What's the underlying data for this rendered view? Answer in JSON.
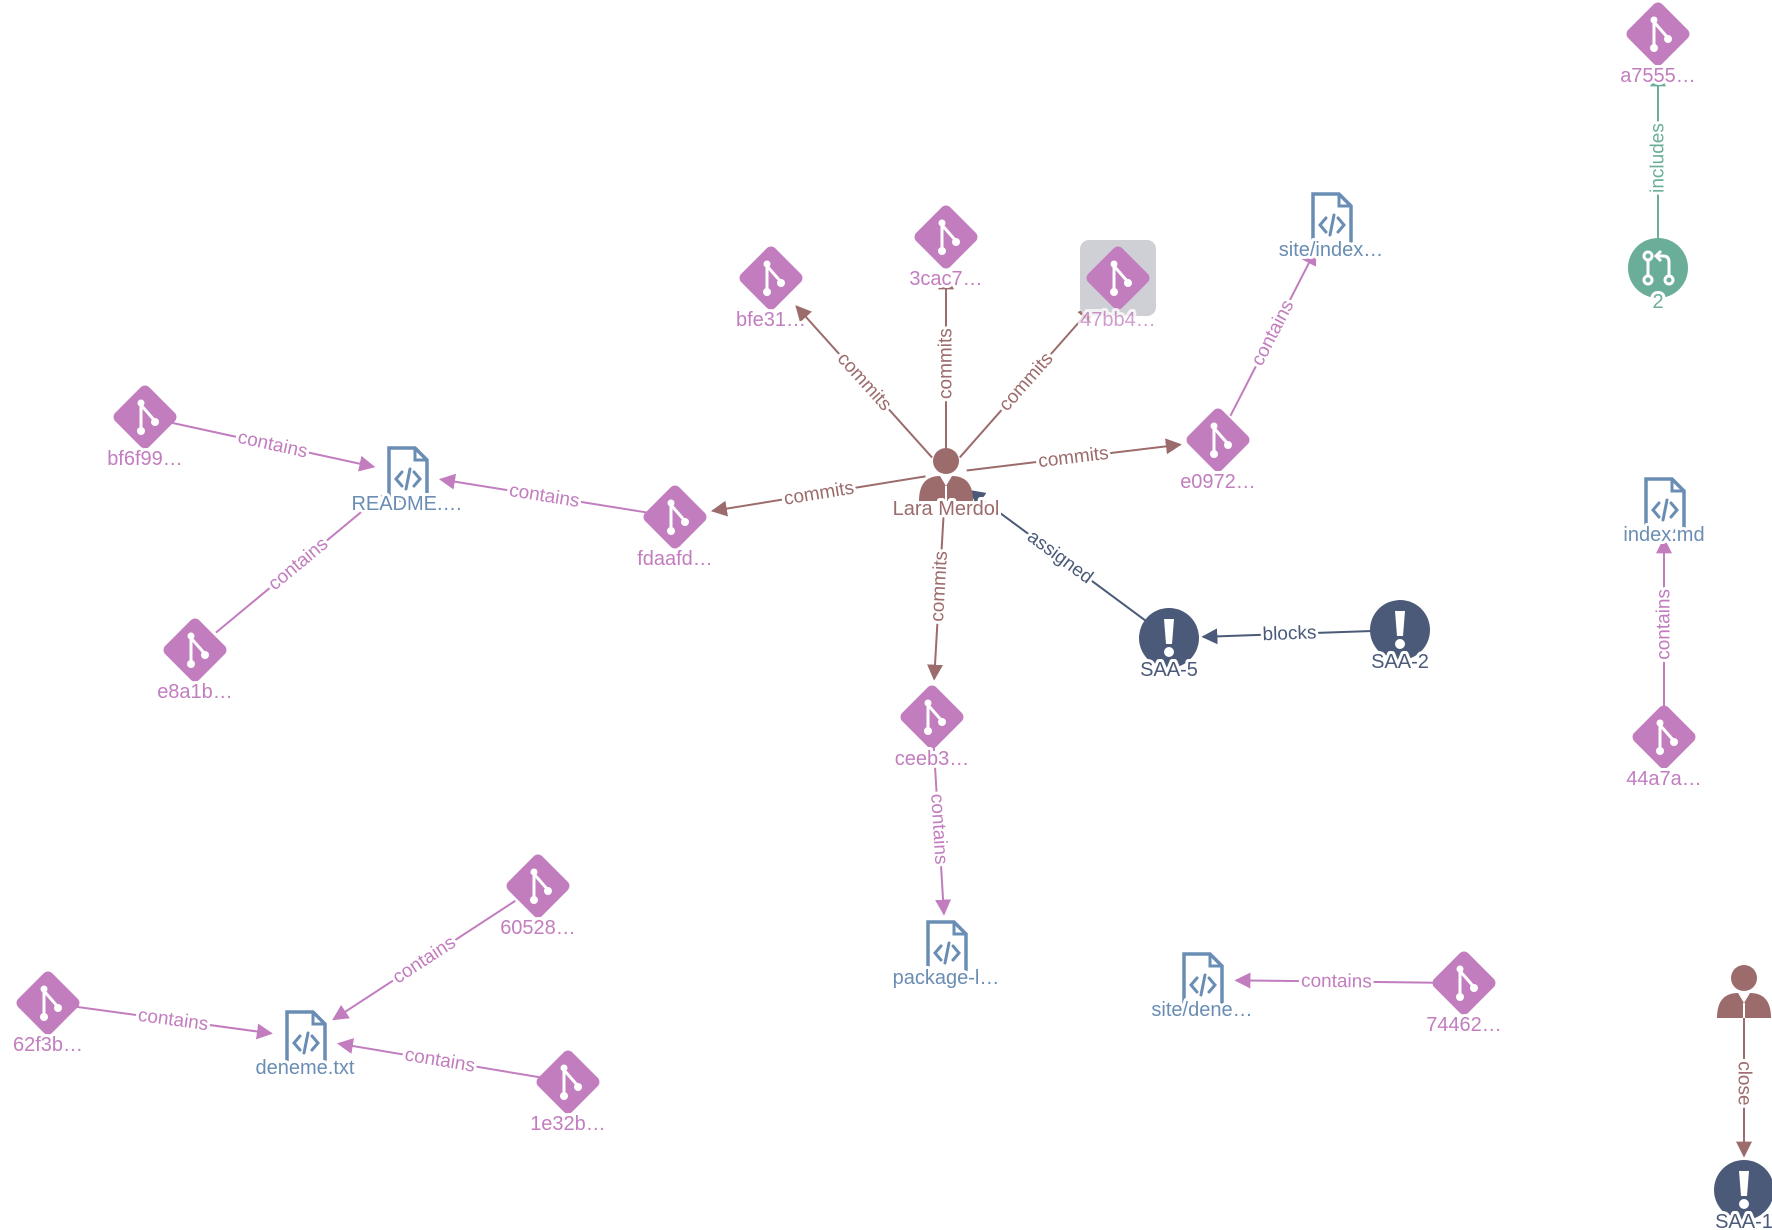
{
  "colors": {
    "commit": "#c27dbf",
    "file": "#6a8db3",
    "person": "#9c6b6b",
    "issue": "#4a5a78",
    "pullrequest": "#6aae9a",
    "selection": "#cfd0d5"
  },
  "nodes": [
    {
      "id": "lara",
      "type": "person",
      "label": "Lara Merdol"
    },
    {
      "id": "bfe31",
      "type": "commit",
      "label": "bfe31…"
    },
    {
      "id": "3cac7",
      "type": "commit",
      "label": "3cac7…"
    },
    {
      "id": "47bb4",
      "type": "commit",
      "label": "47bb4…",
      "selected": true
    },
    {
      "id": "e0972",
      "type": "commit",
      "label": "e0972…"
    },
    {
      "id": "siteindex",
      "type": "file",
      "label": "site/index…"
    },
    {
      "id": "fdaafd",
      "type": "commit",
      "label": "fdaafd…"
    },
    {
      "id": "readme",
      "type": "file",
      "label": "README.…"
    },
    {
      "id": "bf6f99",
      "type": "commit",
      "label": "bf6f99…"
    },
    {
      "id": "e8a1b",
      "type": "commit",
      "label": "e8a1b…"
    },
    {
      "id": "ceeb3",
      "type": "commit",
      "label": "ceeb3…"
    },
    {
      "id": "packagel",
      "type": "file",
      "label": "package-l…"
    },
    {
      "id": "saa5",
      "type": "issue",
      "label": "SAA-5"
    },
    {
      "id": "saa2",
      "type": "issue",
      "label": "SAA-2"
    },
    {
      "id": "a7555",
      "type": "commit",
      "label": "a7555…"
    },
    {
      "id": "pr2",
      "type": "pullrequest",
      "label": "2"
    },
    {
      "id": "indexmd",
      "type": "file",
      "label": "index.md"
    },
    {
      "id": "44a7a",
      "type": "commit",
      "label": "44a7a…"
    },
    {
      "id": "60528",
      "type": "commit",
      "label": "60528…"
    },
    {
      "id": "62f3b",
      "type": "commit",
      "label": "62f3b…"
    },
    {
      "id": "deneme",
      "type": "file",
      "label": "deneme.txt"
    },
    {
      "id": "1e32b",
      "type": "commit",
      "label": "1e32b…"
    },
    {
      "id": "sitedene",
      "type": "file",
      "label": "site/dene…"
    },
    {
      "id": "74462",
      "type": "commit",
      "label": "74462…"
    },
    {
      "id": "person2",
      "type": "person",
      "label": ""
    },
    {
      "id": "saa1",
      "type": "issue",
      "label": "SAA-1"
    }
  ],
  "edges": [
    {
      "from": "lara",
      "to": "bfe31",
      "label": "commits",
      "type": "commits"
    },
    {
      "from": "lara",
      "to": "3cac7",
      "label": "commits",
      "type": "commits"
    },
    {
      "from": "lara",
      "to": "47bb4",
      "label": "commits",
      "type": "commits"
    },
    {
      "from": "lara",
      "to": "e0972",
      "label": "commits",
      "type": "commits"
    },
    {
      "from": "lara",
      "to": "fdaafd",
      "label": "commits",
      "type": "commits"
    },
    {
      "from": "lara",
      "to": "ceeb3",
      "label": "commits",
      "type": "commits"
    },
    {
      "from": "e0972",
      "to": "siteindex",
      "label": "contains",
      "type": "contains"
    },
    {
      "from": "fdaafd",
      "to": "readme",
      "label": "contains",
      "type": "contains"
    },
    {
      "from": "bf6f99",
      "to": "readme",
      "label": "contains",
      "type": "contains"
    },
    {
      "from": "e8a1b",
      "to": "readme",
      "label": "contains",
      "type": "contains"
    },
    {
      "from": "ceeb3",
      "to": "packagel",
      "label": "contains",
      "type": "contains"
    },
    {
      "from": "saa5",
      "to": "lara",
      "label": "assigned",
      "type": "assigned"
    },
    {
      "from": "saa2",
      "to": "saa5",
      "label": "blocks",
      "type": "blocks"
    },
    {
      "from": "pr2",
      "to": "a7555",
      "label": "includes",
      "type": "includes"
    },
    {
      "from": "44a7a",
      "to": "indexmd",
      "label": "contains",
      "type": "contains"
    },
    {
      "from": "60528",
      "to": "deneme",
      "label": "contains",
      "type": "contains"
    },
    {
      "from": "62f3b",
      "to": "deneme",
      "label": "contains",
      "type": "contains"
    },
    {
      "from": "1e32b",
      "to": "deneme",
      "label": "contains",
      "type": "contains"
    },
    {
      "from": "74462",
      "to": "sitedene",
      "label": "contains",
      "type": "contains"
    },
    {
      "from": "person2",
      "to": "saa1",
      "label": "close",
      "type": "close"
    }
  ]
}
